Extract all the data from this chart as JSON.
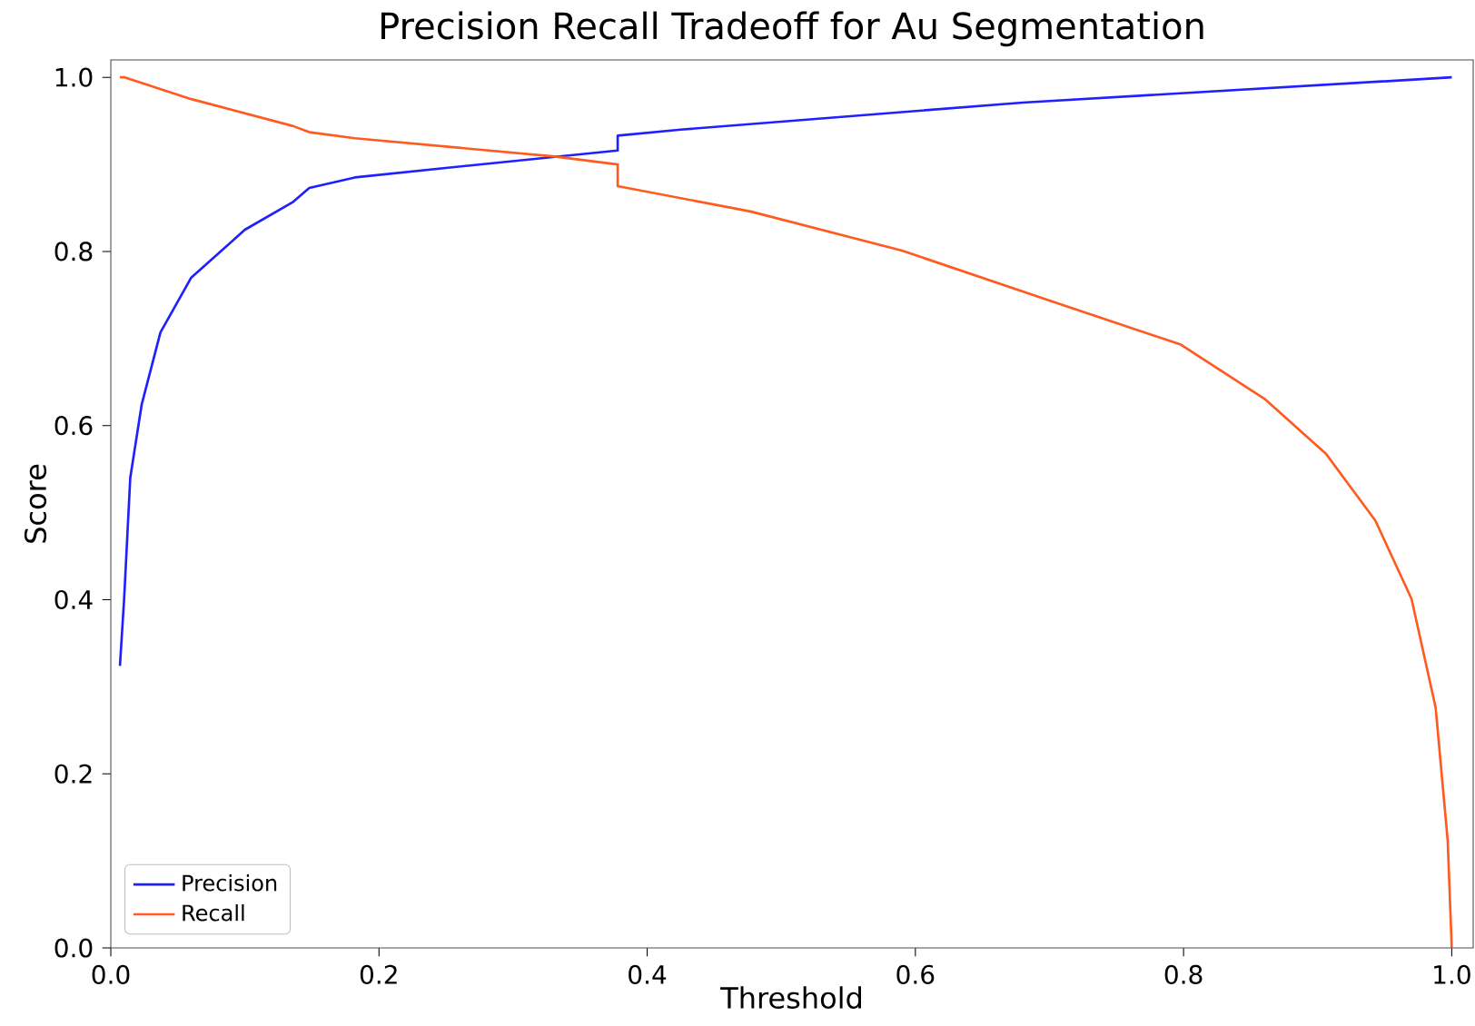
{
  "chart_data": {
    "type": "line",
    "title": "Precision Recall Tradeoff for Au Segmentation",
    "xlabel": "Threshold",
    "ylabel": "Score",
    "xlim": [
      0,
      1.016
    ],
    "ylim": [
      0,
      1.02
    ],
    "xticks": [
      {
        "value": 0,
        "label": "0.0"
      },
      {
        "value": 0.2,
        "label": "0.2"
      },
      {
        "value": 0.4,
        "label": "0.4"
      },
      {
        "value": 0.6,
        "label": "0.6"
      },
      {
        "value": 0.8,
        "label": "0.8"
      },
      {
        "value": 1,
        "label": "1.0"
      }
    ],
    "yticks": [
      {
        "value": 0,
        "label": "0.0"
      },
      {
        "value": 0.2,
        "label": "0.2"
      },
      {
        "value": 0.4,
        "label": "0.4"
      },
      {
        "value": 0.6,
        "label": "0.6"
      },
      {
        "value": 0.8,
        "label": "0.8"
      },
      {
        "value": 1,
        "label": "1.0"
      }
    ],
    "legend": "bottom left",
    "grid": false,
    "marker": "none",
    "line_style": "solid",
    "series": [
      {
        "name": "Precision",
        "color": "#2020ff",
        "x": [
          0.0068,
          0.0099,
          0.0145,
          0.023,
          0.037,
          0.06,
          0.1,
          0.136,
          0.148,
          0.182,
          0.263,
          0.378,
          0.378,
          0.425,
          0.68,
          1.0
        ],
        "values": [
          0.324,
          0.4,
          0.54,
          0.624,
          0.707,
          0.77,
          0.825,
          0.857,
          0.873,
          0.885,
          0.898,
          0.916,
          0.933,
          0.94,
          0.971,
          1.0
        ]
      },
      {
        "name": "Recall",
        "color": "#ff5a1f",
        "x": [
          0.0068,
          0.0104,
          0.06,
          0.136,
          0.148,
          0.182,
          0.331,
          0.378,
          0.378,
          0.477,
          0.59,
          0.703,
          0.798,
          0.861,
          0.906,
          0.943,
          0.97,
          0.988,
          0.997,
          1.0
        ],
        "values": [
          1.0,
          1.0,
          0.975,
          0.944,
          0.937,
          0.93,
          0.909,
          0.9,
          0.875,
          0.846,
          0.801,
          0.742,
          0.693,
          0.63,
          0.568,
          0.491,
          0.401,
          0.276,
          0.123,
          0.0
        ]
      }
    ]
  }
}
